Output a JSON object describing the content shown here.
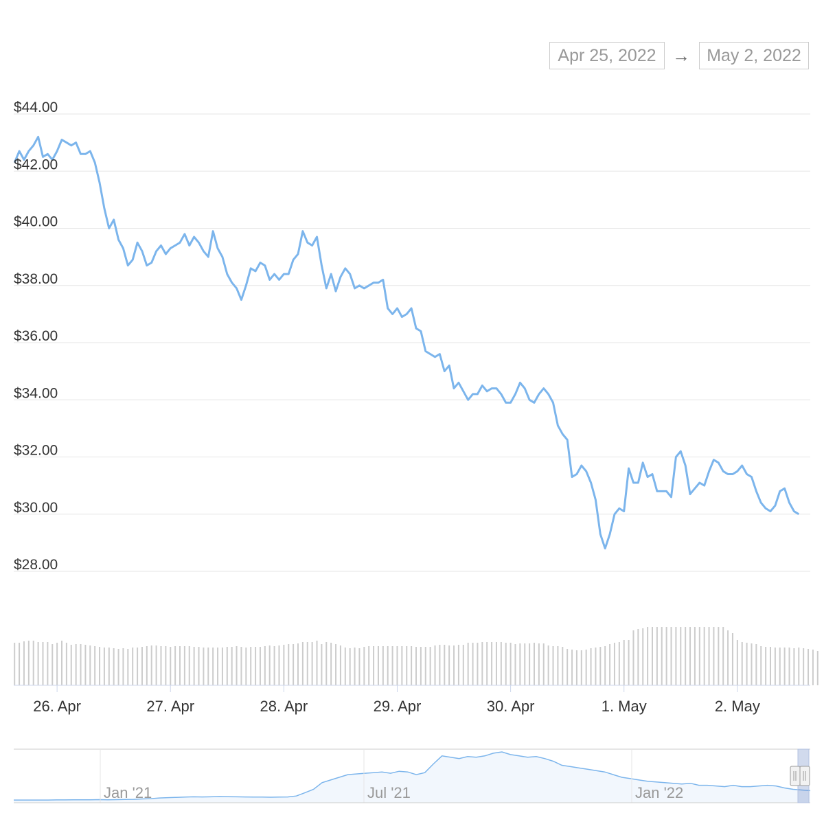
{
  "date_range": {
    "from": "Apr 25, 2022",
    "arrow": "→",
    "to": "May 2, 2022"
  },
  "chart_data": {
    "type": "line",
    "title": "",
    "ylabel": "",
    "xlabel": "",
    "ylim": [
      28,
      44
    ],
    "yticks": [
      "$44.00",
      "$42.00",
      "$40.00",
      "$38.00",
      "$36.00",
      "$34.00",
      "$32.00",
      "$30.00",
      "$28.00"
    ],
    "ytick_values": [
      44,
      42,
      40,
      38,
      36,
      34,
      32,
      30,
      28
    ],
    "xticks": [
      "26. Apr",
      "27. Apr",
      "28. Apr",
      "29. Apr",
      "30. Apr",
      "1. May",
      "2. May"
    ],
    "x_start": "2022-04-25 15:00",
    "x_step_hours": 1,
    "series": [
      {
        "color": "#7cb5ec",
        "values": [
          42.3,
          42.7,
          42.4,
          42.7,
          42.9,
          43.2,
          42.5,
          42.6,
          42.4,
          42.7,
          43.1,
          43.0,
          42.9,
          43.0,
          42.6,
          42.6,
          42.7,
          42.3,
          41.6,
          40.7,
          40.0,
          40.3,
          39.6,
          39.3,
          38.7,
          38.9,
          39.5,
          39.2,
          38.7,
          38.8,
          39.2,
          39.4,
          39.1,
          39.3,
          39.4,
          39.5,
          39.8,
          39.4,
          39.7,
          39.5,
          39.2,
          39.0,
          39.9,
          39.3,
          39.0,
          38.4,
          38.1,
          37.9,
          37.5,
          38.0,
          38.6,
          38.5,
          38.8,
          38.7,
          38.2,
          38.4,
          38.2,
          38.4,
          38.4,
          38.9,
          39.1,
          39.9,
          39.5,
          39.4,
          39.7,
          38.7,
          37.9,
          38.4,
          37.8,
          38.3,
          38.6,
          38.4,
          37.9,
          38.0,
          37.9,
          38.0,
          38.1,
          38.1,
          38.2,
          37.2,
          37.0,
          37.2,
          36.9,
          37.0,
          37.2,
          36.5,
          36.4,
          35.7,
          35.6,
          35.5,
          35.6,
          35.0,
          35.2,
          34.4,
          34.6,
          34.3,
          34.0,
          34.2,
          34.2,
          34.5,
          34.3,
          34.4,
          34.4,
          34.2,
          33.9,
          33.9,
          34.2,
          34.6,
          34.4,
          34.0,
          33.9,
          34.2,
          34.4,
          34.2,
          33.9,
          33.1,
          32.8,
          32.6,
          31.3,
          31.4,
          31.7,
          31.5,
          31.1,
          30.5,
          29.3,
          28.8,
          29.3,
          30.0,
          30.2,
          30.1,
          31.6,
          31.1,
          31.1,
          31.8,
          31.3,
          31.4,
          30.8,
          30.8,
          30.8,
          30.6,
          32.0,
          32.2,
          31.7,
          30.7,
          30.9,
          31.1,
          31.0,
          31.5,
          31.9,
          31.8,
          31.5,
          31.4,
          31.4,
          31.5,
          31.7,
          31.4,
          31.3,
          30.8,
          30.4,
          30.2,
          30.1,
          30.3,
          30.8,
          30.9,
          30.4,
          30.1,
          30.0
        ]
      }
    ],
    "volume": [
      62,
      62,
      64,
      65,
      65,
      63,
      63,
      63,
      60,
      62,
      65,
      62,
      59,
      60,
      60,
      59,
      58,
      57,
      56,
      55,
      55,
      54,
      53,
      54,
      53,
      55,
      55,
      56,
      57,
      58,
      58,
      57,
      57,
      56,
      57,
      57,
      57,
      57,
      56,
      56,
      55,
      55,
      55,
      55,
      55,
      56,
      56,
      57,
      56,
      55,
      56,
      56,
      56,
      57,
      58,
      57,
      58,
      59,
      60,
      60,
      61,
      63,
      63,
      63,
      65,
      60,
      63,
      62,
      60,
      58,
      55,
      54,
      55,
      54,
      56,
      57,
      57,
      57,
      57,
      57,
      57,
      57,
      57,
      57,
      57,
      56,
      56,
      56,
      56,
      58,
      59,
      59,
      58,
      58,
      59,
      59,
      62,
      62,
      62,
      63,
      63,
      63,
      63,
      63,
      62,
      62,
      60,
      61,
      61,
      61,
      62,
      61,
      61,
      58,
      57,
      57,
      56,
      53,
      52,
      51,
      51,
      52,
      54,
      55,
      56,
      57,
      60,
      62,
      63,
      66,
      66,
      80,
      82,
      83,
      85,
      85,
      85,
      85,
      85,
      85,
      85,
      85,
      85,
      85,
      85,
      85,
      85,
      85,
      85,
      85,
      85,
      80,
      76,
      66,
      63,
      62,
      61,
      60,
      57,
      56,
      56,
      55,
      55,
      55,
      55,
      54,
      55,
      54,
      53,
      52,
      50
    ],
    "navigator": {
      "labels": [
        "Jan '21",
        "Jul '21",
        "Jan '22"
      ],
      "values": [
        1.0,
        1.0,
        1.0,
        1.0,
        1.0,
        1.1,
        1.1,
        1.2,
        1.2,
        1.2,
        1.3,
        1.2,
        1.3,
        1.4,
        1.5,
        1.8,
        2.0,
        2.5,
        2.8,
        3.0,
        3.2,
        3.4,
        3.3,
        3.4,
        3.6,
        3.5,
        3.4,
        3.3,
        3.2,
        3.2,
        3.1,
        3.2,
        3.3,
        4.0,
        6.5,
        9.0,
        14.0,
        16.0,
        18.0,
        20.0,
        20.5,
        21.0,
        21.5,
        22.0,
        21.0,
        22.5,
        22.0,
        20.0,
        21.5,
        28.0,
        34.0,
        33.0,
        32.0,
        33.5,
        33.0,
        34.0,
        36.0,
        37.0,
        35.0,
        34.0,
        33.0,
        33.5,
        32.0,
        30.0,
        27.0,
        26.0,
        25.0,
        24.0,
        23.0,
        22.0,
        20.0,
        18.0,
        17.0,
        16.0,
        15.0,
        14.5,
        14.0,
        13.5,
        13.0,
        13.5,
        12.0,
        12.0,
        11.5,
        11.0,
        12.0,
        11.0,
        11.0,
        11.5,
        12.0,
        11.5,
        10.0,
        9.0,
        8.5,
        8.0
      ]
    }
  }
}
